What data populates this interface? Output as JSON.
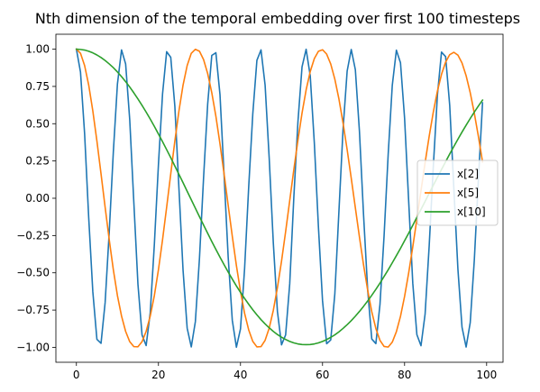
{
  "chart_data": {
    "type": "line",
    "title": "Nth dimension of the temporal embedding over first 100 timesteps",
    "xlabel": "",
    "ylabel": "",
    "xlim": [
      -5,
      104
    ],
    "ylim": [
      -1.1,
      1.1
    ],
    "x_ticks": [
      0,
      20,
      40,
      60,
      80,
      100
    ],
    "x_tick_labels": [
      "0",
      "20",
      "40",
      "60",
      "80",
      "100"
    ],
    "y_ticks": [
      1.0,
      0.75,
      0.5,
      0.25,
      0.0,
      -0.25,
      -0.5,
      -0.75,
      -1.0
    ],
    "y_tick_labels": [
      "1.00",
      "0.75",
      "0.50",
      "0.25",
      "0.00",
      "−0.25",
      "−0.50",
      "−0.75",
      "−1.00"
    ],
    "grid": false,
    "legend_position": "center-right",
    "x_start": 0,
    "x_end": 99,
    "series": [
      {
        "name": "x[2]",
        "color": "#1f77b4",
        "values": [
          1.0,
          0.846,
          0.433,
          -0.13,
          -0.626,
          -0.946,
          -0.973,
          -0.7,
          -0.228,
          0.31,
          0.766,
          0.995,
          0.901,
          0.526,
          -0.028,
          -0.576,
          -0.917,
          -0.988,
          -0.767,
          -0.31,
          0.227,
          0.7,
          0.983,
          0.945,
          0.617,
          0.063,
          -0.483,
          -0.871,
          -0.997,
          -0.827,
          -0.402,
          0.138,
          0.632,
          0.958,
          0.976,
          0.695,
          0.155,
          -0.396,
          -0.818,
          -0.999,
          -0.876,
          -0.472,
          0.076,
          0.567,
          0.925,
          0.995,
          0.759,
          0.268,
          -0.299,
          -0.758,
          -0.983,
          -0.917,
          -0.574,
          0.006,
          0.512,
          0.881,
          0.999,
          0.821,
          0.37,
          -0.194,
          -0.688,
          -0.976,
          -0.95,
          -0.64,
          -0.084,
          0.463,
          0.853,
          0.998,
          0.862,
          0.447,
          -0.112,
          -0.612,
          -0.944,
          -0.975,
          -0.712,
          -0.252,
          0.294,
          0.757,
          0.993,
          0.909,
          0.537,
          -0.021,
          -0.571,
          -0.915,
          -0.989,
          -0.777,
          -0.318,
          0.211,
          0.69,
          0.98,
          0.95,
          0.624,
          0.072,
          -0.475,
          -0.865,
          -0.998,
          -0.834,
          -0.413,
          0.128,
          0.64
        ]
      },
      {
        "name": "x[5]",
        "color": "#ff7f0e",
        "values": [
          1.0,
          0.972,
          0.89,
          0.759,
          0.586,
          0.384,
          0.164,
          -0.06,
          -0.278,
          -0.479,
          -0.653,
          -0.79,
          -0.893,
          -0.962,
          -0.995,
          -0.996,
          -0.962,
          -0.893,
          -0.79,
          -0.653,
          -0.479,
          -0.278,
          -0.06,
          0.164,
          0.384,
          0.586,
          0.759,
          0.89,
          0.972,
          0.999,
          0.986,
          0.93,
          0.836,
          0.708,
          0.55,
          0.365,
          0.163,
          -0.048,
          -0.255,
          -0.451,
          -0.625,
          -0.772,
          -0.883,
          -0.96,
          -0.997,
          -0.995,
          -0.953,
          -0.871,
          -0.752,
          -0.6,
          -0.422,
          -0.224,
          -0.016,
          0.192,
          0.39,
          0.571,
          0.727,
          0.85,
          0.937,
          0.986,
          0.996,
          0.967,
          0.9,
          0.798,
          0.665,
          0.505,
          0.326,
          0.134,
          -0.064,
          -0.261,
          -0.447,
          -0.616,
          -0.761,
          -0.874,
          -0.953,
          -0.994,
          -0.998,
          -0.965,
          -0.895,
          -0.792,
          -0.658,
          -0.5,
          -0.325,
          -0.139,
          0.051,
          0.238,
          0.416,
          0.578,
          0.718,
          0.831,
          0.913,
          0.963,
          0.979,
          0.96,
          0.907,
          0.822,
          0.708,
          0.57,
          0.413,
          0.244
        ]
      },
      {
        "name": "x[10]",
        "color": "#2ca02c",
        "values": [
          1.0,
          0.998,
          0.994,
          0.986,
          0.975,
          0.961,
          0.944,
          0.924,
          0.901,
          0.876,
          0.847,
          0.816,
          0.782,
          0.746,
          0.707,
          0.666,
          0.623,
          0.578,
          0.531,
          0.482,
          0.431,
          0.379,
          0.326,
          0.272,
          0.216,
          0.16,
          0.104,
          0.047,
          -0.01,
          -0.067,
          -0.124,
          -0.18,
          -0.235,
          -0.29,
          -0.343,
          -0.395,
          -0.446,
          -0.495,
          -0.542,
          -0.588,
          -0.631,
          -0.672,
          -0.711,
          -0.748,
          -0.782,
          -0.814,
          -0.843,
          -0.869,
          -0.893,
          -0.914,
          -0.932,
          -0.947,
          -0.96,
          -0.97,
          -0.977,
          -0.981,
          -0.982,
          -0.981,
          -0.977,
          -0.97,
          -0.96,
          -0.948,
          -0.933,
          -0.916,
          -0.896,
          -0.873,
          -0.848,
          -0.821,
          -0.791,
          -0.759,
          -0.725,
          -0.689,
          -0.651,
          -0.611,
          -0.569,
          -0.525,
          -0.48,
          -0.433,
          -0.385,
          -0.336,
          -0.285,
          -0.234,
          -0.181,
          -0.128,
          -0.075,
          -0.021,
          0.033,
          0.087,
          0.14,
          0.193,
          0.245,
          0.297,
          0.347,
          0.396,
          0.444,
          0.49,
          0.535,
          0.578,
          0.619,
          0.658
        ]
      }
    ]
  }
}
